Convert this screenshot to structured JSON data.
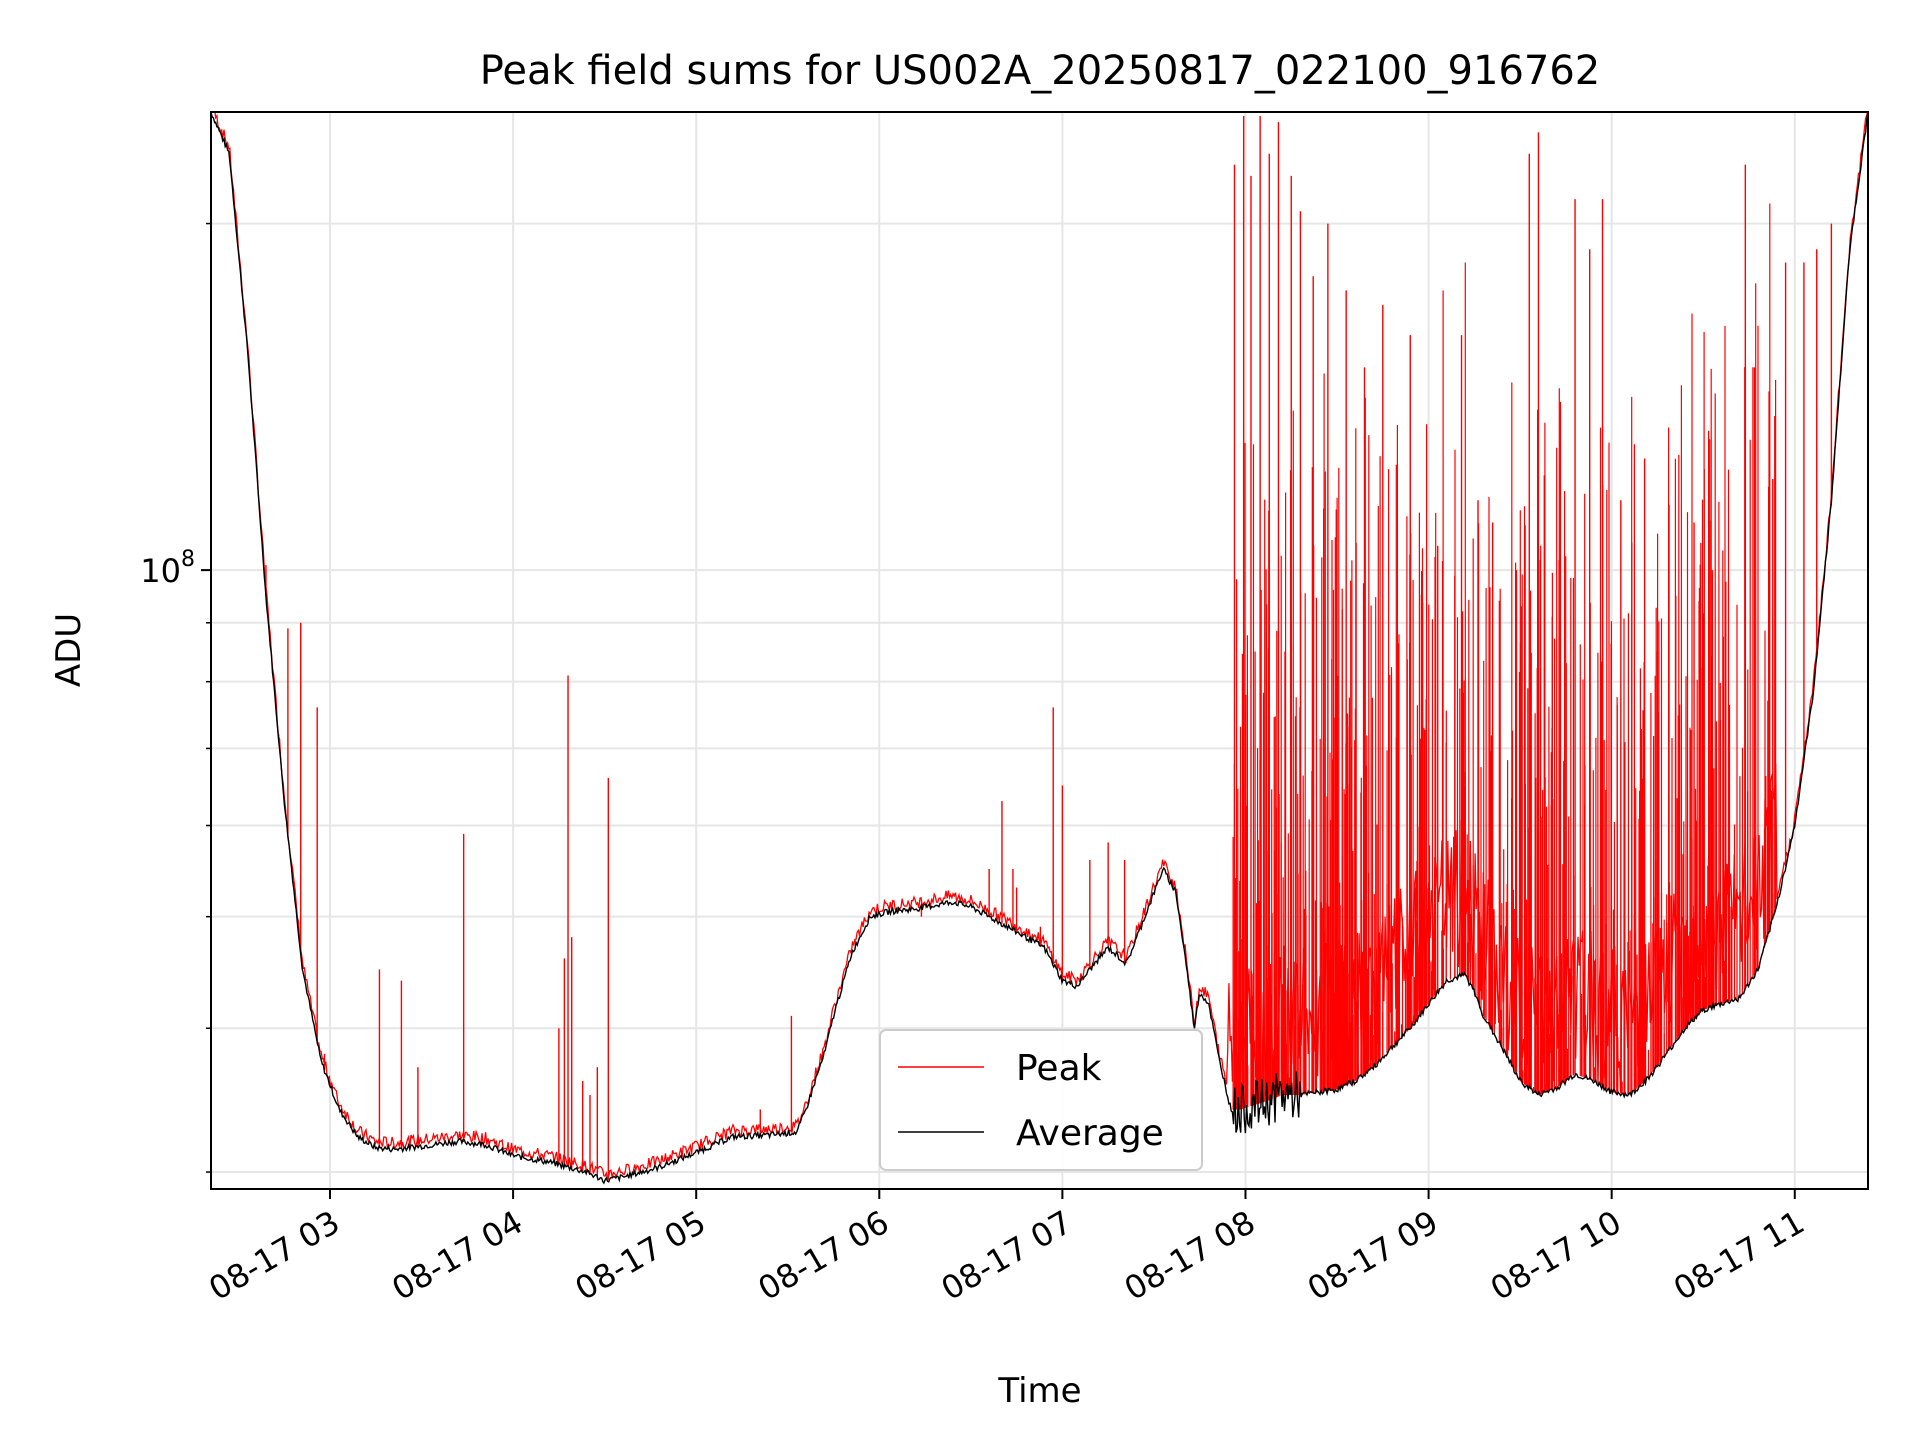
{
  "chart_data": {
    "type": "line",
    "title": "Peak field sums for US002A_20250817_022100_916762",
    "xlabel": "Time",
    "ylabel": "ADU",
    "x_unit": "hour of 2025-08-17",
    "xlim": [
      2.35,
      11.4
    ],
    "ylim": [
      29000000,
      250000000
    ],
    "yscale": "log",
    "grid": true,
    "legend_position": "lower center",
    "x_ticks": [
      {
        "value": 3,
        "label": "08-17 03"
      },
      {
        "value": 4,
        "label": "08-17 04"
      },
      {
        "value": 5,
        "label": "08-17 05"
      },
      {
        "value": 6,
        "label": "08-17 06"
      },
      {
        "value": 7,
        "label": "08-17 07"
      },
      {
        "value": 8,
        "label": "08-17 08"
      },
      {
        "value": 9,
        "label": "08-17 09"
      },
      {
        "value": 10,
        "label": "08-17 10"
      },
      {
        "value": 11,
        "label": "08-17 11"
      }
    ],
    "y_major_ticks": [
      {
        "value": 100000000,
        "base": "10",
        "exponent": "8"
      }
    ],
    "y_minor_ticks": [
      30000000,
      40000000,
      50000000,
      60000000,
      70000000,
      80000000,
      90000000,
      200000000
    ],
    "series": [
      {
        "name": "Peak",
        "color": "#ff0000",
        "note_points": "baseline follows Average; spikes are listed below",
        "spikes": [
          [
            2.65,
            101000000
          ],
          [
            2.72,
            72000000
          ],
          [
            2.77,
            89000000
          ],
          [
            2.84,
            90000000
          ],
          [
            2.93,
            76000000
          ],
          [
            2.97,
            38000000
          ],
          [
            3.27,
            45000000
          ],
          [
            3.39,
            44000000
          ],
          [
            3.48,
            37000000
          ],
          [
            3.73,
            59000000
          ],
          [
            4.25,
            40000000
          ],
          [
            4.28,
            46000000
          ],
          [
            4.3,
            81000000
          ],
          [
            4.32,
            48000000
          ],
          [
            4.38,
            36000000
          ],
          [
            4.42,
            35000000
          ],
          [
            4.46,
            37000000
          ],
          [
            4.52,
            66000000
          ],
          [
            5.35,
            34000000
          ],
          [
            5.52,
            41000000
          ],
          [
            6.23,
            50000000
          ],
          [
            6.6,
            55000000
          ],
          [
            6.67,
            63000000
          ],
          [
            6.73,
            55000000
          ],
          [
            6.75,
            53000000
          ],
          [
            6.88,
            49000000
          ],
          [
            6.95,
            76000000
          ],
          [
            7.0,
            65000000
          ],
          [
            7.15,
            56000000
          ],
          [
            7.25,
            58000000
          ],
          [
            7.34,
            56000000
          ],
          [
            7.94,
            225000000
          ],
          [
            7.99,
            248000000
          ],
          [
            8.03,
            220000000
          ],
          [
            8.08,
            248000000
          ],
          [
            8.13,
            230000000
          ],
          [
            8.18,
            245000000
          ],
          [
            8.25,
            220000000
          ],
          [
            8.3,
            205000000
          ],
          [
            8.37,
            180000000
          ],
          [
            8.45,
            200000000
          ],
          [
            8.55,
            175000000
          ],
          [
            8.65,
            150000000
          ],
          [
            8.75,
            170000000
          ],
          [
            8.9,
            160000000
          ],
          [
            9.05,
            105000000
          ],
          [
            9.18,
            160000000
          ],
          [
            9.27,
            115000000
          ],
          [
            9.35,
            110000000
          ],
          [
            9.48,
            100000000
          ],
          [
            9.55,
            230000000
          ],
          [
            9.6,
            240000000
          ],
          [
            9.72,
            140000000
          ],
          [
            9.8,
            210000000
          ],
          [
            9.88,
            190000000
          ],
          [
            9.95,
            210000000
          ],
          [
            10.05,
            115000000
          ],
          [
            10.18,
            125000000
          ],
          [
            10.25,
            85000000
          ],
          [
            10.35,
            95000000
          ],
          [
            10.45,
            110000000
          ],
          [
            10.55,
            100000000
          ],
          [
            10.62,
            90000000
          ],
          [
            10.73,
            225000000
          ],
          [
            10.78,
            150000000
          ],
          [
            10.88,
            120000000
          ],
          [
            10.95,
            185000000
          ],
          [
            11.05,
            185000000
          ],
          [
            11.12,
            190000000
          ],
          [
            11.2,
            200000000
          ]
        ]
      },
      {
        "name": "Average",
        "color": "#000000",
        "x": [
          2.35,
          2.45,
          2.55,
          2.65,
          2.75,
          2.85,
          2.95,
          3.05,
          3.15,
          3.25,
          3.35,
          3.5,
          3.7,
          3.85,
          4.0,
          4.2,
          4.4,
          4.5,
          4.6,
          4.8,
          5.0,
          5.2,
          5.4,
          5.55,
          5.6,
          5.65,
          5.7,
          5.75,
          5.85,
          5.95,
          6.05,
          6.2,
          6.4,
          6.5,
          6.6,
          6.7,
          6.8,
          6.9,
          7.0,
          7.08,
          7.15,
          7.25,
          7.35,
          7.45,
          7.55,
          7.62,
          7.68,
          7.72,
          7.75,
          7.8,
          7.85,
          7.92,
          7.97,
          8.02,
          8.1,
          8.2,
          8.3,
          8.4,
          8.5,
          8.6,
          8.7,
          8.8,
          8.9,
          9.0,
          9.1,
          9.2,
          9.25,
          9.3,
          9.4,
          9.5,
          9.6,
          9.7,
          9.8,
          9.9,
          10.0,
          10.1,
          10.2,
          10.3,
          10.4,
          10.5,
          10.6,
          10.7,
          10.8,
          10.9,
          11.0,
          11.1,
          11.2,
          11.3,
          11.4
        ],
        "y": [
          250000000,
          230000000,
          155000000,
          95000000,
          63000000,
          45000000,
          37500000,
          34000000,
          32200000,
          31500000,
          31400000,
          31600000,
          31900000,
          31700000,
          31000000,
          30600000,
          30000000,
          29500000,
          29700000,
          30300000,
          31200000,
          32200000,
          32300000,
          32500000,
          34000000,
          36000000,
          38000000,
          41000000,
          46500000,
          50000000,
          50500000,
          50800000,
          51500000,
          51000000,
          50000000,
          49000000,
          48000000,
          47000000,
          44000000,
          43500000,
          45000000,
          47000000,
          45500000,
          50000000,
          55000000,
          52500000,
          45000000,
          40000000,
          43000000,
          42000000,
          38000000,
          34000000,
          34000000,
          34200000,
          34500000,
          35000000,
          35000000,
          35200000,
          35400000,
          36000000,
          37000000,
          38500000,
          40000000,
          42000000,
          44000000,
          44500000,
          43000000,
          41000000,
          38500000,
          36000000,
          35000000,
          35500000,
          36500000,
          36000000,
          35200000,
          35000000,
          36200000,
          38000000,
          40000000,
          41500000,
          42000000,
          42500000,
          45000000,
          51000000,
          60000000,
          78000000,
          115000000,
          190000000,
          250000000
        ]
      }
    ]
  }
}
